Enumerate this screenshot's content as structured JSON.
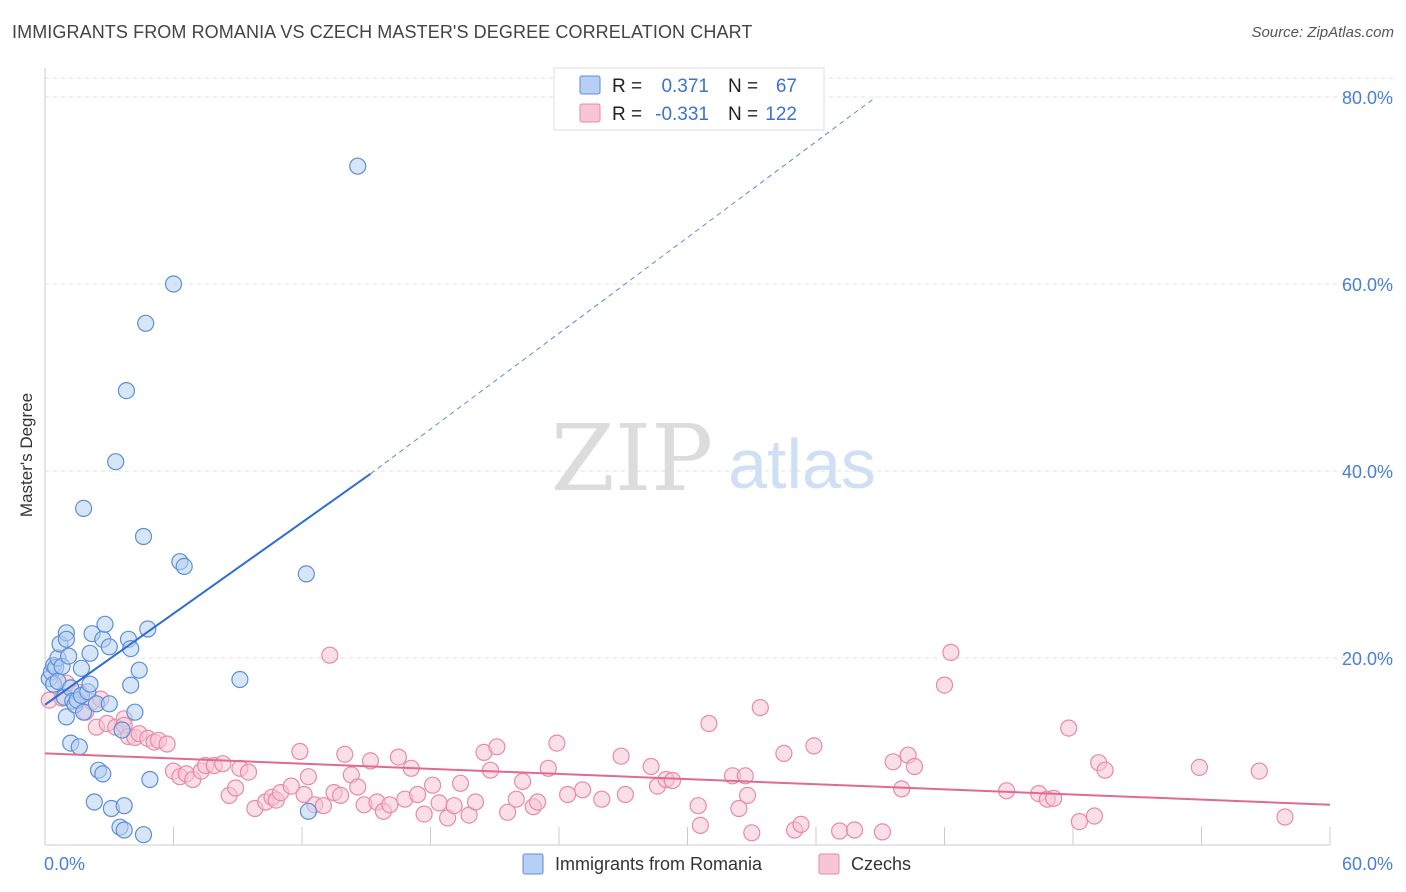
{
  "header": {
    "title": "IMMIGRANTS FROM ROMANIA VS CZECH MASTER'S DEGREE CORRELATION CHART",
    "source": "Source: ZipAtlas.com"
  },
  "watermark": {
    "zip": "ZIP",
    "atlas": "atlas"
  },
  "colors": {
    "blue": "#5b8fd8",
    "blue_fill": "#b6cff2",
    "blue_line": "#2f6fd0",
    "pink": "#e88aa6",
    "pink_fill": "#f7c5d3",
    "pink_line": "#e06a92",
    "tick_label": "#4a7fd4",
    "grid": "#e2e2e2"
  },
  "chart_data": {
    "type": "scatter",
    "title": "IMMIGRANTS FROM ROMANIA VS CZECH MASTER'S DEGREE CORRELATION CHART",
    "xlabel": "",
    "ylabel": "Master's Degree",
    "xlim": [
      0,
      60
    ],
    "ylim": [
      0,
      80
    ],
    "x_tick_labels": [
      "0.0%",
      "60.0%"
    ],
    "y_ticks": [
      20,
      40,
      60,
      80
    ],
    "y_tick_labels": [
      "20.0%",
      "40.0%",
      "60.0%",
      "80.0%"
    ],
    "grid": true,
    "legend_position": "top-center",
    "legend": [
      {
        "series": "Immigrants from Romania",
        "r_label": "R =",
        "r_value": "0.371",
        "n_label": "N =",
        "n_value": "67"
      },
      {
        "series": "Czechs",
        "r_label": "R =",
        "r_value": "-0.331",
        "n_label": "N =",
        "n_value": "122"
      }
    ],
    "series": [
      {
        "name": "Immigrants from Romania",
        "color": "blue",
        "trend": {
          "x0": 0,
          "y0": 15.0,
          "x1": 15.2,
          "y1": 39.7,
          "dashed_to_x": 38.8,
          "dashed_to_y": 80.0
        },
        "points": [
          [
            0.2,
            17.8
          ],
          [
            0.3,
            18.5
          ],
          [
            0.4,
            17.2
          ],
          [
            0.4,
            19.2
          ],
          [
            0.5,
            19.0
          ],
          [
            0.6,
            17.5
          ],
          [
            0.6,
            20.0
          ],
          [
            0.7,
            21.5
          ],
          [
            0.8,
            19.1
          ],
          [
            0.9,
            15.8
          ],
          [
            1.0,
            22.7
          ],
          [
            1.0,
            22.0
          ],
          [
            1.0,
            13.7
          ],
          [
            1.1,
            20.2
          ],
          [
            1.2,
            10.9
          ],
          [
            1.2,
            16.8
          ],
          [
            1.3,
            15.4
          ],
          [
            1.4,
            15.0
          ],
          [
            1.5,
            15.5
          ],
          [
            1.6,
            10.5
          ],
          [
            1.7,
            16.0
          ],
          [
            1.7,
            18.9
          ],
          [
            1.8,
            14.2
          ],
          [
            1.8,
            36.0
          ],
          [
            2.0,
            16.4
          ],
          [
            2.1,
            17.2
          ],
          [
            2.1,
            20.5
          ],
          [
            2.2,
            22.6
          ],
          [
            2.3,
            4.6
          ],
          [
            2.4,
            15.1
          ],
          [
            2.5,
            8.0
          ],
          [
            2.7,
            22.0
          ],
          [
            2.7,
            7.6
          ],
          [
            2.8,
            23.6
          ],
          [
            3.0,
            15.1
          ],
          [
            3.0,
            21.2
          ],
          [
            3.1,
            3.9
          ],
          [
            3.3,
            41.0
          ],
          [
            3.5,
            1.9
          ],
          [
            3.6,
            12.3
          ],
          [
            3.7,
            1.6
          ],
          [
            3.7,
            4.2
          ],
          [
            3.8,
            48.6
          ],
          [
            3.9,
            22.0
          ],
          [
            4.0,
            21.0
          ],
          [
            4.0,
            17.1
          ],
          [
            4.2,
            14.2
          ],
          [
            4.4,
            18.7
          ],
          [
            4.6,
            1.1
          ],
          [
            4.6,
            33.0
          ],
          [
            4.7,
            55.8
          ],
          [
            4.8,
            23.1
          ],
          [
            4.9,
            7.0
          ],
          [
            6.0,
            60.0
          ],
          [
            6.3,
            30.3
          ],
          [
            6.5,
            29.8
          ],
          [
            9.1,
            17.7
          ],
          [
            12.2,
            29.0
          ],
          [
            12.3,
            3.6
          ],
          [
            14.6,
            72.6
          ]
        ]
      },
      {
        "name": "Czechs",
        "color": "pink",
        "trend": {
          "x0": 0,
          "y0": 9.8,
          "x1": 60,
          "y1": 4.3
        },
        "points": [
          [
            0.2,
            15.5
          ],
          [
            0.8,
            15.7
          ],
          [
            1.0,
            17.3
          ],
          [
            1.6,
            16.3
          ],
          [
            1.9,
            14.2
          ],
          [
            2.2,
            15.3
          ],
          [
            2.4,
            12.6
          ],
          [
            2.6,
            15.6
          ],
          [
            2.9,
            13.0
          ],
          [
            3.3,
            12.6
          ],
          [
            3.7,
            13.5
          ],
          [
            3.7,
            12.8
          ],
          [
            3.9,
            11.6
          ],
          [
            4.2,
            11.5
          ],
          [
            4.4,
            11.9
          ],
          [
            4.8,
            11.4
          ],
          [
            5.1,
            11.0
          ],
          [
            5.3,
            11.2
          ],
          [
            5.7,
            10.8
          ],
          [
            6.0,
            7.9
          ],
          [
            6.3,
            7.3
          ],
          [
            6.6,
            7.6
          ],
          [
            6.9,
            7.0
          ],
          [
            7.3,
            7.9
          ],
          [
            7.5,
            8.5
          ],
          [
            7.9,
            8.5
          ],
          [
            8.3,
            8.7
          ],
          [
            8.6,
            5.3
          ],
          [
            8.9,
            6.1
          ],
          [
            9.1,
            8.2
          ],
          [
            9.5,
            7.8
          ],
          [
            9.8,
            3.9
          ],
          [
            10.3,
            4.6
          ],
          [
            10.6,
            5.1
          ],
          [
            10.8,
            4.8
          ],
          [
            11.0,
            5.6
          ],
          [
            11.5,
            6.3
          ],
          [
            11.9,
            10.0
          ],
          [
            12.1,
            5.4
          ],
          [
            12.3,
            7.3
          ],
          [
            12.6,
            4.3
          ],
          [
            13.0,
            4.2
          ],
          [
            13.3,
            20.3
          ],
          [
            13.5,
            5.6
          ],
          [
            13.8,
            5.3
          ],
          [
            14.0,
            9.7
          ],
          [
            14.3,
            7.5
          ],
          [
            14.6,
            6.2
          ],
          [
            14.9,
            4.3
          ],
          [
            15.2,
            9.0
          ],
          [
            15.5,
            4.6
          ],
          [
            15.8,
            3.6
          ],
          [
            16.1,
            4.3
          ],
          [
            16.5,
            9.4
          ],
          [
            16.8,
            4.9
          ],
          [
            17.1,
            8.2
          ],
          [
            17.4,
            5.4
          ],
          [
            17.7,
            3.3
          ],
          [
            18.1,
            6.4
          ],
          [
            18.4,
            4.5
          ],
          [
            18.8,
            2.9
          ],
          [
            19.1,
            4.2
          ],
          [
            19.4,
            6.6
          ],
          [
            19.8,
            3.2
          ],
          [
            20.1,
            4.6
          ],
          [
            20.5,
            9.9
          ],
          [
            20.8,
            8.0
          ],
          [
            21.1,
            10.5
          ],
          [
            21.6,
            3.5
          ],
          [
            22.0,
            4.9
          ],
          [
            22.3,
            6.8
          ],
          [
            22.8,
            4.1
          ],
          [
            23.0,
            4.6
          ],
          [
            23.5,
            8.2
          ],
          [
            23.9,
            10.9
          ],
          [
            24.4,
            5.4
          ],
          [
            25.1,
            5.9
          ],
          [
            26.0,
            4.9
          ],
          [
            26.9,
            9.5
          ],
          [
            27.1,
            5.4
          ],
          [
            28.3,
            8.4
          ],
          [
            28.6,
            6.3
          ],
          [
            29.0,
            7.0
          ],
          [
            29.3,
            6.9
          ],
          [
            30.5,
            4.2
          ],
          [
            30.6,
            2.1
          ],
          [
            31.0,
            13.0
          ],
          [
            32.1,
            7.4
          ],
          [
            32.4,
            3.9
          ],
          [
            32.7,
            7.4
          ],
          [
            32.8,
            5.3
          ],
          [
            33.0,
            1.3
          ],
          [
            33.4,
            14.7
          ],
          [
            34.5,
            9.8
          ],
          [
            35.0,
            1.6
          ],
          [
            35.3,
            2.2
          ],
          [
            35.9,
            10.6
          ],
          [
            37.1,
            1.5
          ],
          [
            37.8,
            1.6
          ],
          [
            39.1,
            1.4
          ],
          [
            39.6,
            8.9
          ],
          [
            40.0,
            6.0
          ],
          [
            40.3,
            9.6
          ],
          [
            40.6,
            8.4
          ],
          [
            42.0,
            17.1
          ],
          [
            42.3,
            20.6
          ],
          [
            44.9,
            5.8
          ],
          [
            46.4,
            5.5
          ],
          [
            46.8,
            4.9
          ],
          [
            47.1,
            5.0
          ],
          [
            47.8,
            12.5
          ],
          [
            48.3,
            2.5
          ],
          [
            49.0,
            3.1
          ],
          [
            49.2,
            8.8
          ],
          [
            49.5,
            8.0
          ],
          [
            53.9,
            8.3
          ],
          [
            56.7,
            7.9
          ],
          [
            57.9,
            3.0
          ]
        ]
      }
    ]
  }
}
